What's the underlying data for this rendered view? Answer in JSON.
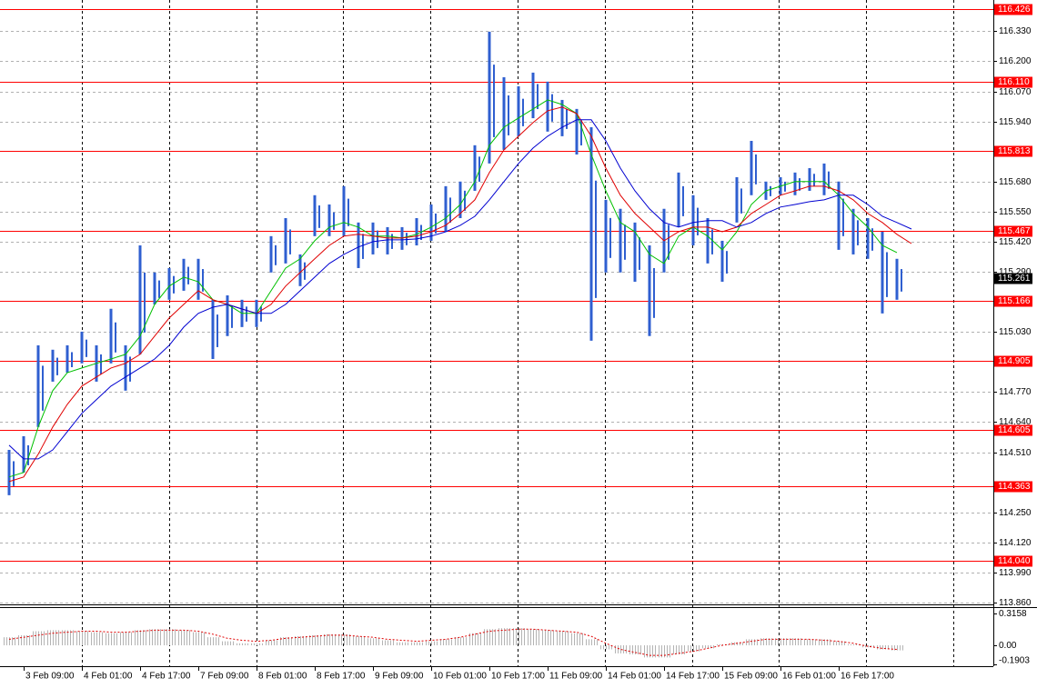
{
  "chart_data": [
    {
      "type": "ohlc",
      "categories": [
        null,
        "3 Feb 09:00",
        null,
        null,
        null,
        "4 Feb 01:00",
        null,
        null,
        null,
        "4 Feb 17:00",
        null,
        null,
        null,
        "7 Feb 09:00",
        null,
        null,
        null,
        "8 Feb 01:00",
        null,
        null,
        null,
        "8 Feb 17:00",
        null,
        null,
        null,
        "9 Feb 09:00",
        null,
        null,
        null,
        "10 Feb 01:00",
        null,
        null,
        null,
        "10 Feb 17:00",
        null,
        null,
        null,
        "11 Feb 09:00",
        null,
        null,
        null,
        "14 Feb 01:00",
        null,
        null,
        null,
        "14 Feb 17:00",
        null,
        null,
        null,
        "15 Feb 09:00",
        null,
        null,
        null,
        "16 Feb 01:00",
        null,
        null,
        null,
        "16 Feb 17:00",
        null,
        null,
        null,
        null,
        null
      ],
      "color": "#2f5fd0",
      "high": [
        114.52,
        114.579,
        114.972,
        114.953,
        114.972,
        115.031,
        114.972,
        115.13,
        114.972,
        115.404,
        115.287,
        115.306,
        115.346,
        115.346,
        115.169,
        115.188,
        115.169,
        115.169,
        115.444,
        115.522,
        115.365,
        115.621,
        115.581,
        115.66,
        115.503,
        115.503,
        115.483,
        115.483,
        115.522,
        115.581,
        115.66,
        115.68,
        115.837,
        116.328,
        116.131,
        116.092,
        116.151,
        116.112,
        116.033,
        115.994,
        115.915,
        115.601,
        115.562,
        115.503,
        115.404,
        115.562,
        115.719,
        115.621,
        115.522,
        115.424,
        115.699,
        115.856,
        115.68,
        115.699,
        115.719,
        115.738,
        115.758,
        115.68,
        115.562,
        115.522,
        115.463,
        115.346,
        null
      ],
      "low": [
        114.324,
        114.422,
        114.619,
        114.815,
        114.854,
        114.894,
        114.815,
        114.894,
        114.776,
        114.933,
        115.149,
        115.169,
        115.208,
        115.169,
        114.913,
        115.012,
        115.051,
        115.051,
        115.287,
        115.326,
        115.228,
        115.444,
        115.444,
        115.444,
        115.306,
        115.365,
        115.365,
        115.385,
        115.404,
        115.424,
        115.463,
        115.522,
        115.64,
        115.758,
        115.817,
        115.876,
        115.954,
        115.896,
        115.876,
        115.797,
        114.992,
        115.287,
        115.287,
        115.247,
        115.012,
        115.287,
        115.483,
        115.404,
        115.326,
        115.247,
        115.503,
        115.621,
        115.601,
        115.621,
        115.621,
        115.64,
        115.621,
        115.385,
        115.365,
        115.346,
        115.11,
        115.169,
        null
      ],
      "overlays": [
        {
          "color": "#00c000",
          "values": [
            114.403,
            114.422,
            114.619,
            114.776,
            114.854,
            114.874,
            114.894,
            114.913,
            114.933,
            115.012,
            115.149,
            115.228,
            115.267,
            115.247,
            115.169,
            115.149,
            115.11,
            115.11,
            115.208,
            115.306,
            115.346,
            115.424,
            115.483,
            115.503,
            115.483,
            115.444,
            115.444,
            115.436,
            115.452,
            115.483,
            115.522,
            115.581,
            115.68,
            115.837,
            115.915,
            115.955,
            115.994,
            116.033,
            116.013,
            115.974,
            115.797,
            115.64,
            115.503,
            115.463,
            115.365,
            115.326,
            115.444,
            115.483,
            115.444,
            115.385,
            115.463,
            115.581,
            115.64,
            115.66,
            115.68,
            115.68,
            115.68,
            115.621,
            115.542,
            115.483,
            115.404,
            115.373,
            null
          ]
        },
        {
          "color": "#e00000",
          "values": [
            114.383,
            114.403,
            114.501,
            114.619,
            114.717,
            114.796,
            114.835,
            114.874,
            114.894,
            114.933,
            115.012,
            115.09,
            115.149,
            115.208,
            115.169,
            115.149,
            115.129,
            115.11,
            115.149,
            115.228,
            115.287,
            115.346,
            115.404,
            115.444,
            115.452,
            115.444,
            115.436,
            115.436,
            115.444,
            115.463,
            115.491,
            115.542,
            115.601,
            115.719,
            115.817,
            115.876,
            115.935,
            115.986,
            116.002,
            115.974,
            115.876,
            115.738,
            115.621,
            115.542,
            115.483,
            115.424,
            115.463,
            115.483,
            115.483,
            115.463,
            115.483,
            115.542,
            115.581,
            115.621,
            115.64,
            115.66,
            115.66,
            115.64,
            115.601,
            115.542,
            115.503,
            115.452,
            115.412
          ]
        },
        {
          "color": "#0000d0",
          "values": [
            114.54,
            114.481,
            114.481,
            114.52,
            114.599,
            114.678,
            114.737,
            114.796,
            114.835,
            114.874,
            114.913,
            114.972,
            115.051,
            115.11,
            115.137,
            115.149,
            115.129,
            115.11,
            115.11,
            115.149,
            115.208,
            115.267,
            115.326,
            115.365,
            115.397,
            115.42,
            115.428,
            115.428,
            115.432,
            115.444,
            115.463,
            115.491,
            115.53,
            115.601,
            115.68,
            115.758,
            115.825,
            115.876,
            115.915,
            115.947,
            115.947,
            115.856,
            115.738,
            115.64,
            115.562,
            115.503,
            115.483,
            115.503,
            115.511,
            115.511,
            115.483,
            115.503,
            115.542,
            115.57,
            115.581,
            115.593,
            115.601,
            115.621,
            115.621,
            115.581,
            115.53,
            115.503,
            115.475
          ]
        }
      ],
      "levels": [
        {
          "value": 116.426,
          "label": "116.426"
        },
        {
          "value": 116.11,
          "label": "116.110"
        },
        {
          "value": 115.813,
          "label": "115.813"
        },
        {
          "value": 115.467,
          "label": "115.467"
        },
        {
          "value": 115.166,
          "label": "115.166"
        },
        {
          "value": 114.905,
          "label": "114.905"
        },
        {
          "value": 114.605,
          "label": "114.605"
        },
        {
          "value": 114.363,
          "label": "114.363"
        },
        {
          "value": 114.04,
          "label": "114.040"
        }
      ],
      "level_color": "#ff0000",
      "last_price": {
        "value": 115.261,
        "label": "115.261"
      },
      "ylim": [
        113.852,
        116.465
      ],
      "yticks": [
        {
          "value": 116.33,
          "label": "116.330"
        },
        {
          "value": 116.2,
          "label": "116.200"
        },
        {
          "value": 116.07,
          "label": "116.070"
        },
        {
          "value": 115.94,
          "label": "115.940"
        },
        {
          "value": 115.68,
          "label": "115.680"
        },
        {
          "value": 115.55,
          "label": "115.550"
        },
        {
          "value": 115.42,
          "label": "115.420"
        },
        {
          "value": 115.29,
          "label": "115.290"
        },
        {
          "value": 115.03,
          "label": "115.030"
        },
        {
          "value": 114.77,
          "label": "114.770"
        },
        {
          "value": 114.64,
          "label": "114.640"
        },
        {
          "value": 114.51,
          "label": "114.510"
        },
        {
          "value": 114.25,
          "label": "114.250"
        },
        {
          "value": 114.12,
          "label": "114.120"
        },
        {
          "value": 113.99,
          "label": "113.990"
        },
        {
          "value": 113.86,
          "label": "113.860"
        }
      ],
      "grid": true
    },
    {
      "type": "macd",
      "color": "#b4b4b4",
      "values": [
        0.08,
        0.1,
        0.14,
        0.15,
        0.15,
        0.14,
        0.13,
        0.12,
        0.13,
        0.15,
        0.16,
        0.16,
        0.15,
        0.13,
        0.08,
        0.04,
        0.02,
        0.02,
        0.05,
        0.08,
        0.09,
        0.1,
        0.11,
        0.11,
        0.09,
        0.07,
        0.05,
        0.03,
        0.03,
        0.04,
        0.06,
        0.08,
        0.12,
        0.16,
        0.17,
        0.17,
        0.16,
        0.15,
        0.14,
        0.12,
        0.06,
        -0.04,
        -0.08,
        -0.09,
        -0.12,
        -0.12,
        -0.09,
        -0.06,
        -0.03,
        0.01,
        0.03,
        0.06,
        0.07,
        0.07,
        0.07,
        0.06,
        0.06,
        0.04,
        0.01,
        -0.02,
        -0.04,
        -0.05,
        null
      ],
      "signal": {
        "color": "#e00000",
        "values": [
          0.06,
          0.08,
          0.1,
          0.12,
          0.13,
          0.14,
          0.14,
          0.13,
          0.13,
          0.14,
          0.15,
          0.15,
          0.15,
          0.14,
          0.11,
          0.07,
          0.05,
          0.04,
          0.05,
          0.07,
          0.08,
          0.09,
          0.1,
          0.1,
          0.09,
          0.08,
          0.06,
          0.05,
          0.04,
          0.05,
          0.06,
          0.08,
          0.11,
          0.14,
          0.15,
          0.16,
          0.16,
          0.15,
          0.14,
          0.13,
          0.09,
          0.02,
          -0.04,
          -0.07,
          -0.1,
          -0.1,
          -0.08,
          -0.06,
          -0.03,
          0.0,
          0.02,
          0.04,
          0.06,
          0.06,
          0.06,
          0.06,
          0.05,
          0.04,
          0.02,
          -0.01,
          -0.03,
          -0.04,
          null
        ]
      },
      "ylim": [
        -0.207,
        0.379
      ],
      "yticks": [
        0.3158,
        {
          "value": 0,
          "label": "0.00"
        },
        -0.1903
      ]
    }
  ]
}
